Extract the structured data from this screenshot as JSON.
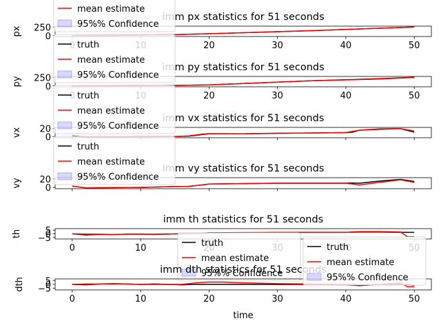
{
  "chart_data": [
    {
      "type": "line",
      "title": "imm px statistics for 51 seconds",
      "xlabel": "",
      "ylabel": "px",
      "xlim": [
        -2.5,
        52.5
      ],
      "ylim": [
        -25,
        275
      ],
      "xticks": [
        0,
        10,
        20,
        30,
        40,
        50
      ],
      "yticks": [
        0,
        250
      ],
      "show_xticklabels": true,
      "legend": [
        "truth",
        "mean estimate",
        "95%% Confidence"
      ],
      "legend_placement": "upper-left",
      "series": [
        {
          "name": "truth",
          "color": "#000000",
          "x": [
            0,
            5,
            10,
            15,
            20,
            25,
            30,
            35,
            40,
            45,
            50
          ],
          "y": [
            0,
            5,
            15,
            30,
            55,
            85,
            115,
            145,
            180,
            215,
            250
          ]
        },
        {
          "name": "mean estimate",
          "color": "#ff0000",
          "x": [
            0,
            5,
            10,
            15,
            20,
            25,
            30,
            35,
            40,
            45,
            50
          ],
          "y": [
            0,
            5,
            15,
            30,
            55,
            85,
            115,
            145,
            180,
            215,
            250
          ]
        }
      ]
    },
    {
      "type": "line",
      "title": "imm py statistics for 51 seconds",
      "xlabel": "",
      "ylabel": "py",
      "xlim": [
        -2.5,
        52.5
      ],
      "ylim": [
        -25,
        275
      ],
      "xticks": [
        0,
        10,
        20,
        30,
        40,
        50
      ],
      "yticks": [
        0,
        250
      ],
      "show_xticklabels": true,
      "legend": [
        "truth",
        "mean estimate",
        "95%% Confidence"
      ],
      "legend_placement": "upper-left",
      "series": [
        {
          "name": "truth",
          "color": "#000000",
          "x": [
            0,
            5,
            10,
            15,
            20,
            25,
            30,
            35,
            40,
            45,
            50
          ],
          "y": [
            0,
            2,
            6,
            12,
            30,
            70,
            110,
            150,
            180,
            210,
            250
          ]
        },
        {
          "name": "mean estimate",
          "color": "#ff0000",
          "x": [
            0,
            5,
            10,
            15,
            20,
            25,
            30,
            35,
            40,
            45,
            50
          ],
          "y": [
            0,
            2,
            6,
            12,
            30,
            70,
            110,
            150,
            175,
            200,
            245
          ]
        }
      ]
    },
    {
      "type": "line",
      "title": "imm vx statistics for 51 seconds",
      "xlabel": "",
      "ylabel": "vx",
      "xlim": [
        -2.5,
        52.5
      ],
      "ylim": [
        -3,
        23
      ],
      "xticks": [
        0,
        10,
        20,
        30,
        40,
        50
      ],
      "yticks": [
        0,
        20
      ],
      "show_xticklabels": false,
      "legend": [
        "truth",
        "mean estimate",
        "95%% Confidence"
      ],
      "legend_placement": "upper-left",
      "series": [
        {
          "name": "truth",
          "color": "#000000",
          "x": [
            0,
            2,
            5,
            10,
            15,
            17,
            19,
            20,
            25,
            30,
            35,
            40,
            41,
            42,
            45,
            48,
            50
          ],
          "y": [
            1,
            -1,
            -1,
            -0.5,
            0,
            1,
            5,
            7,
            7,
            8,
            9,
            10,
            11,
            16,
            19,
            20,
            11
          ]
        },
        {
          "name": "mean estimate",
          "color": "#ff0000",
          "x": [
            0,
            2,
            5,
            10,
            15,
            17,
            19,
            20,
            25,
            30,
            35,
            40,
            41,
            42,
            45,
            48,
            50
          ],
          "y": [
            1.5,
            -1,
            -1,
            -0.5,
            0,
            1.5,
            6,
            7.5,
            7,
            8.5,
            9,
            10,
            13,
            16,
            18,
            20,
            14
          ]
        }
      ]
    },
    {
      "type": "line",
      "title": "imm vy statistics for 51 seconds",
      "xlabel": "",
      "ylabel": "vy",
      "xlim": [
        -2.5,
        52.5
      ],
      "ylim": [
        -3,
        23
      ],
      "xticks": [
        0,
        10,
        20,
        30,
        40,
        50
      ],
      "yticks": [
        0,
        20
      ],
      "show_xticklabels": false,
      "legend": [
        "truth",
        "mean estimate",
        "95%% Confidence"
      ],
      "legend_placement": "upper-left",
      "series": [
        {
          "name": "truth",
          "color": "#000000",
          "x": [
            0,
            2,
            5,
            10,
            15,
            17,
            19,
            20,
            25,
            30,
            35,
            40,
            41,
            42,
            45,
            48,
            50
          ],
          "y": [
            3,
            -1,
            -0.5,
            0,
            2,
            2.5,
            6,
            8,
            9,
            10,
            10,
            10,
            10.5,
            10,
            15,
            19,
            14
          ]
        },
        {
          "name": "mean estimate",
          "color": "#ff0000",
          "x": [
            0,
            2,
            5,
            10,
            15,
            17,
            19,
            20,
            25,
            30,
            35,
            40,
            41,
            42,
            45,
            48,
            50
          ],
          "y": [
            3,
            -1,
            -0.5,
            0,
            2,
            2.5,
            6,
            8,
            9,
            10,
            10,
            10,
            8,
            6,
            12,
            18,
            12
          ]
        }
      ]
    },
    {
      "type": "line",
      "title": "imm th statistics for 51 seconds",
      "xlabel": "",
      "ylabel": "th",
      "xlim": [
        -2.5,
        52.5
      ],
      "ylim": [
        -7,
        7
      ],
      "xticks": [
        0,
        10,
        20,
        30,
        40,
        50
      ],
      "yticks": [
        -5,
        0,
        5
      ],
      "ytick_labels": [
        "−5",
        "0",
        "5"
      ],
      "show_xticklabels": true,
      "legend": [
        "truth",
        "mean estimate",
        "95%% Confidence"
      ],
      "legend_placement": "lower-center",
      "series": [
        {
          "name": "truth",
          "color": "#000000",
          "x": [
            0,
            2,
            4,
            6,
            8,
            10,
            12,
            14,
            16,
            18,
            20,
            25,
            30,
            35,
            40,
            42,
            45,
            48,
            50
          ],
          "y": [
            0,
            -1.5,
            -0.8,
            -1,
            -0.5,
            -0.5,
            -0.8,
            -0.3,
            0,
            0.5,
            1,
            1.5,
            1.8,
            2,
            2,
            2.5,
            2.5,
            2,
            2
          ]
        },
        {
          "name": "mean estimate",
          "color": "#ff0000",
          "x": [
            0,
            2,
            4,
            6,
            8,
            10,
            12,
            14,
            16,
            18,
            20,
            25,
            30,
            35,
            40,
            42,
            45,
            48,
            49,
            50
          ],
          "y": [
            0,
            -0.5,
            -0.5,
            -1,
            -0.5,
            -0.5,
            -0.5,
            -0.3,
            0,
            0.5,
            1.5,
            1.8,
            2,
            2,
            2,
            3,
            3,
            2.5,
            -4,
            -4
          ]
        }
      ]
    },
    {
      "type": "line",
      "title": "imm dth statistics for 51 seconds",
      "xlabel": "time",
      "ylabel": "dth",
      "xlim": [
        -2.5,
        52.5
      ],
      "ylim": [
        -7,
        7
      ],
      "xticks": [
        0,
        10,
        20,
        30,
        40,
        50
      ],
      "yticks": [
        -5,
        0,
        5
      ],
      "ytick_labels": [
        "−5",
        "0",
        "5"
      ],
      "show_xticklabels": true,
      "legend": [
        "truth",
        "mean estimate",
        "95%% Confidence"
      ],
      "legend_placement": "center-right",
      "series": [
        {
          "name": "truth",
          "color": "#000000",
          "x": [
            0,
            2,
            4,
            6,
            8,
            10,
            12,
            14,
            16,
            18,
            20,
            25,
            30,
            35,
            40,
            42,
            45,
            48,
            50
          ],
          "y": [
            0,
            -0.5,
            0.5,
            1,
            0.5,
            0,
            0.5,
            0,
            -0.5,
            0,
            0,
            0,
            0,
            0,
            -0.5,
            -1.5,
            0,
            0.5,
            -1
          ]
        },
        {
          "name": "mean estimate",
          "color": "#ff0000",
          "x": [
            0,
            2,
            4,
            6,
            8,
            10,
            12,
            14,
            16,
            18,
            20,
            22,
            25,
            30,
            35,
            40,
            42,
            45,
            48,
            49,
            50
          ],
          "y": [
            0,
            0.5,
            0.5,
            0.5,
            0.5,
            0,
            0,
            0,
            0,
            2,
            3,
            3,
            2,
            1,
            0.5,
            0,
            -0.5,
            0,
            2,
            -3,
            -3
          ]
        }
      ]
    }
  ]
}
